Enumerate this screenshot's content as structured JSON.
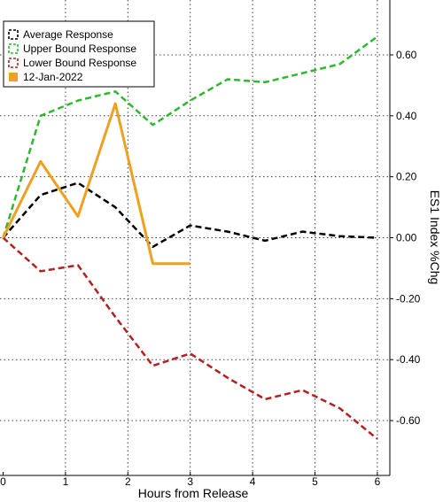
{
  "chart_data": {
    "type": "line",
    "xlabel": "Hours from Release",
    "ylabel": "ES1 Index %Chg",
    "xlim": [
      -0.05,
      6.2
    ],
    "ylim": [
      -0.78,
      0.78
    ],
    "x_ticks": [
      0,
      1,
      2,
      3,
      4,
      5,
      6
    ],
    "y_ticks": [
      0.6,
      0.4,
      0.2,
      0.0,
      -0.2,
      -0.4,
      -0.6
    ],
    "y_tick_labels": [
      "0.60",
      "0.40",
      "0.20",
      "0.00",
      "-0.20",
      "-0.40",
      "-0.60"
    ],
    "grid": true,
    "legend_position": "top-left",
    "y_axis_side": "right",
    "series": [
      {
        "name": "Average Response",
        "color": "#000000",
        "dash": true,
        "x": [
          0,
          0.6,
          1.2,
          1.8,
          2.4,
          3.0,
          3.6,
          4.2,
          4.8,
          5.4,
          6.0
        ],
        "y": [
          0.0,
          0.14,
          0.18,
          0.1,
          -0.03,
          0.04,
          0.02,
          -0.01,
          0.02,
          0.005,
          0.0
        ]
      },
      {
        "name": "Upper Bound Response",
        "color": "#2db82d",
        "dash": true,
        "x": [
          0,
          0.6,
          1.2,
          1.8,
          2.4,
          3.0,
          3.6,
          4.2,
          4.8,
          5.4,
          6.0
        ],
        "y": [
          0.0,
          0.4,
          0.45,
          0.48,
          0.37,
          0.45,
          0.52,
          0.51,
          0.54,
          0.57,
          0.66
        ]
      },
      {
        "name": "Lower Bound Response",
        "color": "#b51f1f",
        "dash": true,
        "x": [
          0,
          0.6,
          1.2,
          1.8,
          2.4,
          3.0,
          3.6,
          4.2,
          4.8,
          5.4,
          6.0
        ],
        "y": [
          0.0,
          -0.11,
          -0.09,
          -0.26,
          -0.42,
          -0.38,
          -0.46,
          -0.53,
          -0.5,
          -0.56,
          -0.66
        ]
      },
      {
        "name": "12-Jan-2022",
        "color": "#f0a020",
        "dash": false,
        "x": [
          0,
          0.6,
          1.2,
          1.8,
          2.4,
          3.0
        ],
        "y": [
          0.0,
          0.25,
          0.07,
          0.44,
          -0.085,
          -0.085
        ]
      }
    ]
  }
}
